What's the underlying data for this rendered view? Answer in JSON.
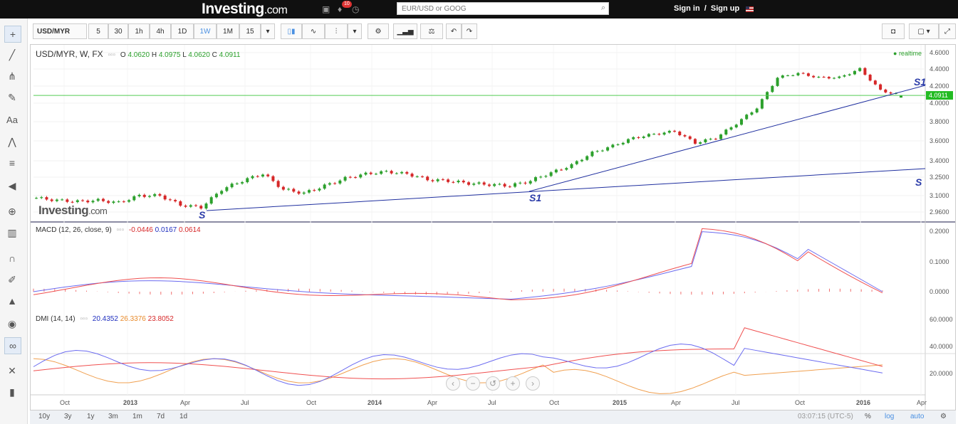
{
  "header": {
    "logo_main": "Investing",
    "logo_suffix": ".com",
    "notification_count": "10",
    "search_placeholder": "EUR/USD or GOOG",
    "signin": "Sign in",
    "separator": "/",
    "signup": "Sign up"
  },
  "toolbar": {
    "symbol": "USD/MYR",
    "intervals": [
      "5",
      "30",
      "1h",
      "4h",
      "1D",
      "1W",
      "1M",
      "15"
    ],
    "active_interval": "1W"
  },
  "chart": {
    "title": "USD/MYR, W, FX",
    "ohlc": {
      "o_label": "O",
      "o": "4.0620",
      "h_label": "H",
      "h": "4.0975",
      "l_label": "L",
      "l": "4.0620",
      "c_label": "C",
      "c": "4.0911"
    },
    "realtime": "realtime",
    "last_price": "4.0911",
    "annotations": [
      "S",
      "S1",
      "S1",
      "S"
    ],
    "watermark_main": "Investing",
    "watermark_suffix": ".com",
    "price_axis": [
      "4.6000",
      "4.4000",
      "4.2000",
      "4.0000",
      "3.8000",
      "3.6000",
      "3.4000",
      "3.2500",
      "3.1000",
      "2.9600"
    ],
    "x_labels": [
      "Oct",
      "2013",
      "Apr",
      "Jul",
      "Oct",
      "2014",
      "Apr",
      "Jul",
      "Oct",
      "2015",
      "Apr",
      "Jul",
      "Oct",
      "2016",
      "Apr"
    ]
  },
  "macd": {
    "label": "MACD (12, 26, close, 9)",
    "v1": "-0.0446",
    "v2": "0.0167",
    "v3": "0.0614",
    "axis": [
      "0.2000",
      "0.1000",
      "0.0000"
    ]
  },
  "dmi": {
    "label": "DMI (14, 14)",
    "v1": "20.4352",
    "v2": "26.3376",
    "v3": "23.8052",
    "axis": [
      "60.0000",
      "40.0000",
      "20.0000"
    ]
  },
  "bottom": {
    "ranges": [
      "10y",
      "3y",
      "1y",
      "3m",
      "1m",
      "7d",
      "1d"
    ],
    "time": "03:07:15 (UTC-5)",
    "pct": "%",
    "log": "log",
    "auto": "auto"
  },
  "colors": {
    "up": "#2ca02c",
    "down": "#d62728",
    "trend": "#1f2f9f",
    "blue": "#6b6bf0",
    "red": "#f05050",
    "orange": "#f0a050"
  },
  "chart_data": [
    {
      "type": "line",
      "title": "USD/MYR, W, FX",
      "x": [
        "2012-09",
        "2012-10",
        "2012-11",
        "2012-12",
        "2013-01",
        "2013-02",
        "2013-03",
        "2013-04",
        "2013-05",
        "2013-06",
        "2013-07",
        "2013-08",
        "2013-09",
        "2013-10",
        "2013-11",
        "2013-12",
        "2014-01",
        "2014-02",
        "2014-03",
        "2014-04",
        "2014-05",
        "2014-06",
        "2014-07",
        "2014-08",
        "2014-09",
        "2014-10",
        "2014-11",
        "2014-12",
        "2015-01",
        "2015-02",
        "2015-03",
        "2015-04",
        "2015-05",
        "2015-06",
        "2015-07",
        "2015-08",
        "2015-09",
        "2015-10",
        "2015-11",
        "2015-12",
        "2016-01",
        "2016-02",
        "2016-03"
      ],
      "series": [
        {
          "values": [
            3.08,
            3.06,
            3.05,
            3.06,
            3.04,
            3.1,
            3.1,
            3.02,
            3.0,
            3.15,
            3.22,
            3.28,
            3.15,
            3.12,
            3.18,
            3.24,
            3.28,
            3.3,
            3.28,
            3.23,
            3.22,
            3.2,
            3.19,
            3.18,
            3.22,
            3.29,
            3.36,
            3.48,
            3.55,
            3.63,
            3.67,
            3.7,
            3.58,
            3.63,
            3.78,
            3.95,
            4.3,
            4.35,
            4.3,
            4.3,
            4.4,
            4.15,
            4.09
          ]
        }
      ],
      "ylim": [
        2.9,
        4.6
      ]
    }
  ]
}
